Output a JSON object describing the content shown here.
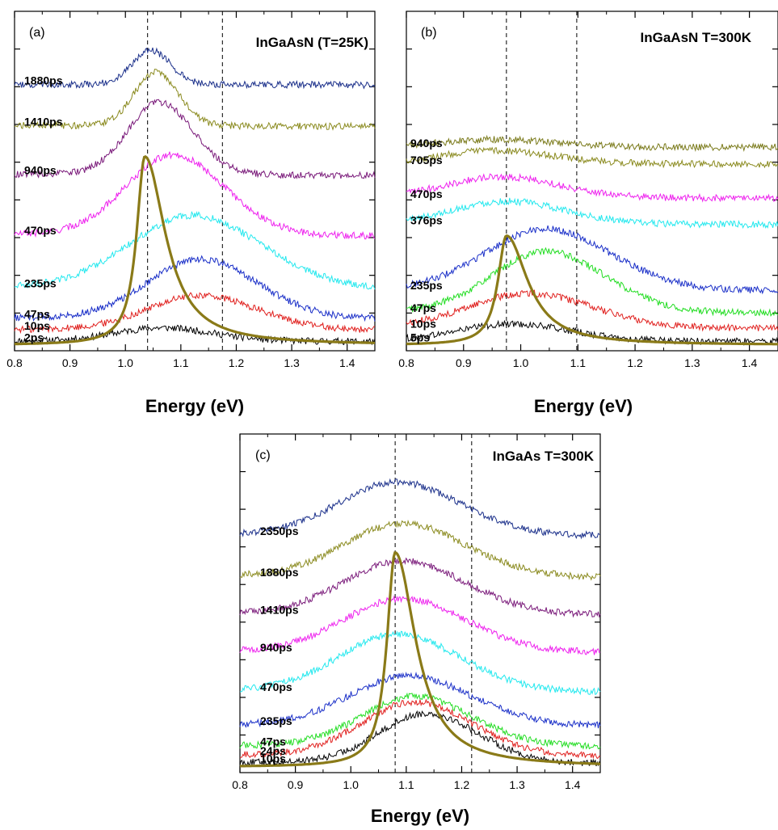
{
  "chart_data": [
    {
      "panel": "(a)",
      "type": "line",
      "title": "InGaAsN (T=25K)",
      "xlabel": "Energy (eV)",
      "ylabel": "",
      "xlim": [
        0.8,
        1.45
      ],
      "ylim": [
        0,
        9
      ],
      "x_ticks": [
        "0.8",
        "0.9",
        "1.0",
        "1.1",
        "1.2",
        "1.3",
        "1.4"
      ],
      "grid": false,
      "dashed_lines_x": [
        1.04,
        1.175
      ],
      "series": [
        {
          "name": "2ps",
          "color": "#000000",
          "offset": 0.0,
          "peak": 1.08,
          "amp": 0.35,
          "width": 0.09
        },
        {
          "name": "10ps",
          "color": "#e0201e",
          "offset": 0.3,
          "peak": 1.15,
          "amp": 0.9,
          "width": 0.1
        },
        {
          "name": "47ps",
          "color": "#1a2fc8",
          "offset": 0.6,
          "peak": 1.15,
          "amp": 1.55,
          "width": 0.1
        },
        {
          "name": "235ps",
          "color": "#22e8ee",
          "offset": 1.4,
          "peak": 1.14,
          "amp": 1.9,
          "width": 0.12
        },
        {
          "name": "470ps",
          "color": "#ee22ee",
          "offset": 2.8,
          "peak": 1.1,
          "amp": 2.1,
          "width": 0.09
        },
        {
          "name": "940ps",
          "color": "#7a1a7a",
          "offset": 4.4,
          "peak": 1.07,
          "amp": 1.9,
          "width": 0.06
        },
        {
          "name": "1410ps",
          "color": "#8a8a1e",
          "offset": 5.7,
          "peak": 1.06,
          "amp": 1.4,
          "width": 0.04
        },
        {
          "name": "1880ps",
          "color": "#1a2f8a",
          "offset": 6.8,
          "peak": 1.05,
          "amp": 0.9,
          "width": 0.035
        }
      ],
      "laser_line": {
        "color": "#8a7a18",
        "peak": 1.035,
        "height": 5.0
      }
    },
    {
      "panel": "(b)",
      "type": "line",
      "title": "InGaAsN T=300K",
      "xlabel": "Energy (eV)",
      "ylabel": "",
      "xlim": [
        0.8,
        1.45
      ],
      "ylim": [
        0,
        9
      ],
      "x_ticks": [
        "0.8",
        "0.9",
        "1.0",
        "1.1",
        "1.2",
        "1.3",
        "1.4"
      ],
      "grid": false,
      "dashed_lines_x": [
        0.975,
        1.098
      ],
      "series": [
        {
          "name": "5ps",
          "color": "#000000",
          "offset": 0.0,
          "peak": 1.0,
          "amp": 0.45,
          "width": 0.1
        },
        {
          "name": "10ps",
          "color": "#e0201e",
          "offset": 0.35,
          "peak": 1.03,
          "amp": 0.9,
          "width": 0.11
        },
        {
          "name": "47ps",
          "color": "#22dd22",
          "offset": 0.75,
          "peak": 1.06,
          "amp": 1.6,
          "width": 0.1
        },
        {
          "name": "235ps",
          "color": "#1a2fc8",
          "offset": 1.35,
          "peak": 1.06,
          "amp": 1.6,
          "width": 0.11
        },
        {
          "name": "376ps",
          "color": "#22e8ee",
          "offset": 3.1,
          "peak": 0.99,
          "amp": 0.6,
          "width": 0.1
        },
        {
          "name": "470ps",
          "color": "#ee22ee",
          "offset": 3.8,
          "peak": 0.98,
          "amp": 0.55,
          "width": 0.1
        },
        {
          "name": "705ps",
          "color": "#8a8a1e",
          "offset": 4.7,
          "peak": 0.97,
          "amp": 0.35,
          "width": 0.1
        },
        {
          "name": "940ps",
          "color": "#7a7a1a",
          "offset": 5.15,
          "peak": 0.97,
          "amp": 0.2,
          "width": 0.1
        }
      ],
      "laser_line": {
        "color": "#8a7a18",
        "peak": 0.975,
        "height": 2.9
      }
    },
    {
      "panel": "(c)",
      "type": "line",
      "title": "InGaAs T=300K",
      "xlabel": "Energy (eV)",
      "ylabel": "",
      "xlim": [
        0.8,
        1.45
      ],
      "ylim": [
        0,
        9
      ],
      "x_ticks": [
        "0.8",
        "0.9",
        "1.0",
        "1.1",
        "1.2",
        "1.3",
        "1.4"
      ],
      "grid": false,
      "dashed_lines_x": [
        1.08,
        1.218
      ],
      "series": [
        {
          "name": "10ps",
          "color": "#000000",
          "offset": 0.0,
          "peak": 1.15,
          "amp": 1.3,
          "width": 0.09
        },
        {
          "name": "24ps",
          "color": "#e0201e",
          "offset": 0.2,
          "peak": 1.13,
          "amp": 1.4,
          "width": 0.1
        },
        {
          "name": "47ps",
          "color": "#22dd22",
          "offset": 0.45,
          "peak": 1.13,
          "amp": 1.3,
          "width": 0.1
        },
        {
          "name": "235ps",
          "color": "#1a2fc8",
          "offset": 1.0,
          "peak": 1.12,
          "amp": 1.3,
          "width": 0.11
        },
        {
          "name": "470ps",
          "color": "#22e8ee",
          "offset": 1.9,
          "peak": 1.1,
          "amp": 1.5,
          "width": 0.11
        },
        {
          "name": "940ps",
          "color": "#ee22ee",
          "offset": 2.95,
          "peak": 1.11,
          "amp": 1.4,
          "width": 0.11
        },
        {
          "name": "1410ps",
          "color": "#7a1a7a",
          "offset": 3.95,
          "peak": 1.11,
          "amp": 1.4,
          "width": 0.11
        },
        {
          "name": "1880ps",
          "color": "#8a8a1e",
          "offset": 4.95,
          "peak": 1.11,
          "amp": 1.4,
          "width": 0.11
        },
        {
          "name": "2350ps",
          "color": "#1a2f8a",
          "offset": 6.05,
          "peak": 1.1,
          "amp": 1.4,
          "width": 0.11
        }
      ],
      "laser_line": {
        "color": "#8a7a18",
        "peak": 1.08,
        "height": 5.7
      }
    }
  ]
}
